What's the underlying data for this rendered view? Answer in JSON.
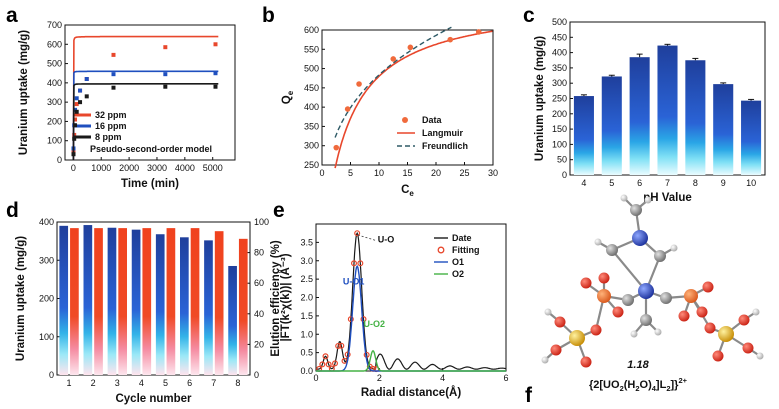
{
  "panel_labels": {
    "a": "a",
    "b": "b",
    "c": "c",
    "d": "d",
    "e": "e",
    "f": "f"
  },
  "colors": {
    "red": "#e8472c",
    "blue": "#1f4fbf",
    "black": "#1a1a1a",
    "orange": "#f06a3c",
    "teal": "#2e6f7a",
    "green": "#45b245",
    "purple": "#7a3fb5",
    "grey": "#9a9a9a",
    "yellow": "#e6b422",
    "white": "#f2f2f2"
  },
  "molecule": {
    "label_value": "1.18",
    "formula_open": "{2[UO",
    "sub1": "2",
    "formula_mid1": "(H",
    "sub2": "2",
    "formula_mid2": "O)",
    "sub3": "4",
    "formula_mid3": "]L",
    "sub4": "2",
    "formula_close": "]}",
    "sup": "2+"
  },
  "chart_data": [
    {
      "panel": "a",
      "type": "scatter",
      "xlabel": "Time (min)",
      "ylabel": "Uranium uptake (mg/g)",
      "xlim": [
        -300,
        5800
      ],
      "ylim": [
        0,
        700
      ],
      "xticks": [
        0,
        1000,
        2000,
        3000,
        4000,
        5000
      ],
      "yticks": [
        0,
        100,
        200,
        300,
        400,
        500,
        600,
        700
      ],
      "annotation": "Pseudo-second-order model",
      "series": [
        {
          "name": "32 ppm",
          "color": "#e8472c",
          "x": [
            5,
            30,
            60,
            120,
            240,
            480,
            1440,
            3300,
            5100
          ],
          "y": [
            40,
            130,
            210,
            290,
            360,
            420,
            545,
            585,
            600
          ],
          "fit_qe": 640,
          "fit_k": 0.0026
        },
        {
          "name": "16 ppm",
          "color": "#1f4fbf",
          "x": [
            5,
            30,
            60,
            120,
            240,
            480,
            1440,
            3300,
            5100
          ],
          "y": [
            60,
            180,
            260,
            320,
            360,
            420,
            445,
            445,
            450
          ],
          "fit_qe": 460,
          "fit_k": 0.006
        },
        {
          "name": "8  ppm",
          "color": "#1a1a1a",
          "x": [
            5,
            30,
            60,
            120,
            240,
            480,
            1440,
            3300,
            5100
          ],
          "y": [
            30,
            110,
            180,
            250,
            300,
            330,
            375,
            380,
            380
          ],
          "fit_qe": 395,
          "fit_k": 0.005
        }
      ]
    },
    {
      "panel": "b",
      "type": "scatter",
      "xlabel": "C",
      "xlabel_sub": "e",
      "ylabel": "Q",
      "ylabel_sub": "e",
      "xlim": [
        0,
        30
      ],
      "ylim": [
        250,
        600
      ],
      "xticks": [
        0,
        5,
        10,
        15,
        20,
        25,
        30
      ],
      "yticks": [
        250,
        300,
        350,
        400,
        450,
        500,
        550,
        600
      ],
      "legend": [
        "Data",
        "Langmuir",
        "Freundlich"
      ],
      "data_x": [
        2.5,
        4.5,
        6.5,
        12.5,
        15.5,
        22.5,
        27.5
      ],
      "data_y": [
        295,
        395,
        460,
        525,
        555,
        575,
        595
      ],
      "langmuir": {
        "qm": 680,
        "kl": 0.24
      },
      "freundlich": {
        "kf": 255,
        "n": 3.6
      }
    },
    {
      "panel": "c",
      "type": "bar",
      "xlabel": "pH Value",
      "ylabel": "Uranium uptake (mg/g)",
      "categories": [
        "4",
        "5",
        "6",
        "7",
        "8",
        "9",
        "10"
      ],
      "values": [
        258,
        322,
        385,
        423,
        375,
        297,
        243
      ],
      "errors": [
        4,
        4,
        10,
        4,
        6,
        4,
        4
      ],
      "ylim": [
        0,
        500
      ],
      "yticks": [
        0,
        50,
        100,
        150,
        200,
        250,
        300,
        350,
        400,
        450,
        500
      ]
    },
    {
      "panel": "d",
      "type": "bar",
      "xlabel": "Cycle number",
      "ylabel": "Uranium uptake (mg/g)",
      "ylabel_right": "Elution efficiency (%)",
      "categories": [
        "1",
        "2",
        "3",
        "4",
        "5",
        "6",
        "7",
        "8"
      ],
      "uptake": [
        390,
        392,
        385,
        380,
        368,
        360,
        352,
        285
      ],
      "elution": [
        96,
        96,
        96,
        96,
        96,
        96,
        94,
        89
      ],
      "ylim": [
        0,
        400
      ],
      "yticks": [
        0,
        100,
        200,
        300,
        400
      ],
      "y2lim": [
        0,
        100
      ],
      "y2ticks": [
        0,
        20,
        40,
        60,
        80,
        100
      ]
    },
    {
      "panel": "e",
      "type": "line",
      "xlabel": "Radial distance(Å)",
      "ylabel": "|FT(k²χ(k))| (Å⁻³)",
      "xlim": [
        0,
        6
      ],
      "ylim": [
        0,
        4.0
      ],
      "xticks": [
        0,
        2,
        4,
        6
      ],
      "yticks": [
        0.0,
        0.5,
        1.0,
        1.5,
        2.0,
        2.5,
        3.0,
        3.5
      ],
      "legend": [
        "Date",
        "Fitting",
        "O1",
        "O2"
      ],
      "annotations": [
        "U-O",
        "U-O1",
        "U-O2"
      ],
      "peaks_main": [
        [
          0.3,
          0.35,
          0.1
        ],
        [
          0.75,
          0.75,
          0.12
        ],
        [
          1.3,
          3.7,
          0.2
        ]
      ],
      "peaks_o1": [
        [
          1.3,
          2.85,
          0.2
        ]
      ],
      "peaks_o2": [
        [
          1.8,
          0.55,
          0.12
        ]
      ],
      "oscillation": {
        "start": 1.9,
        "amp": 0.45,
        "period": 0.55,
        "decay": 0.7
      }
    }
  ]
}
